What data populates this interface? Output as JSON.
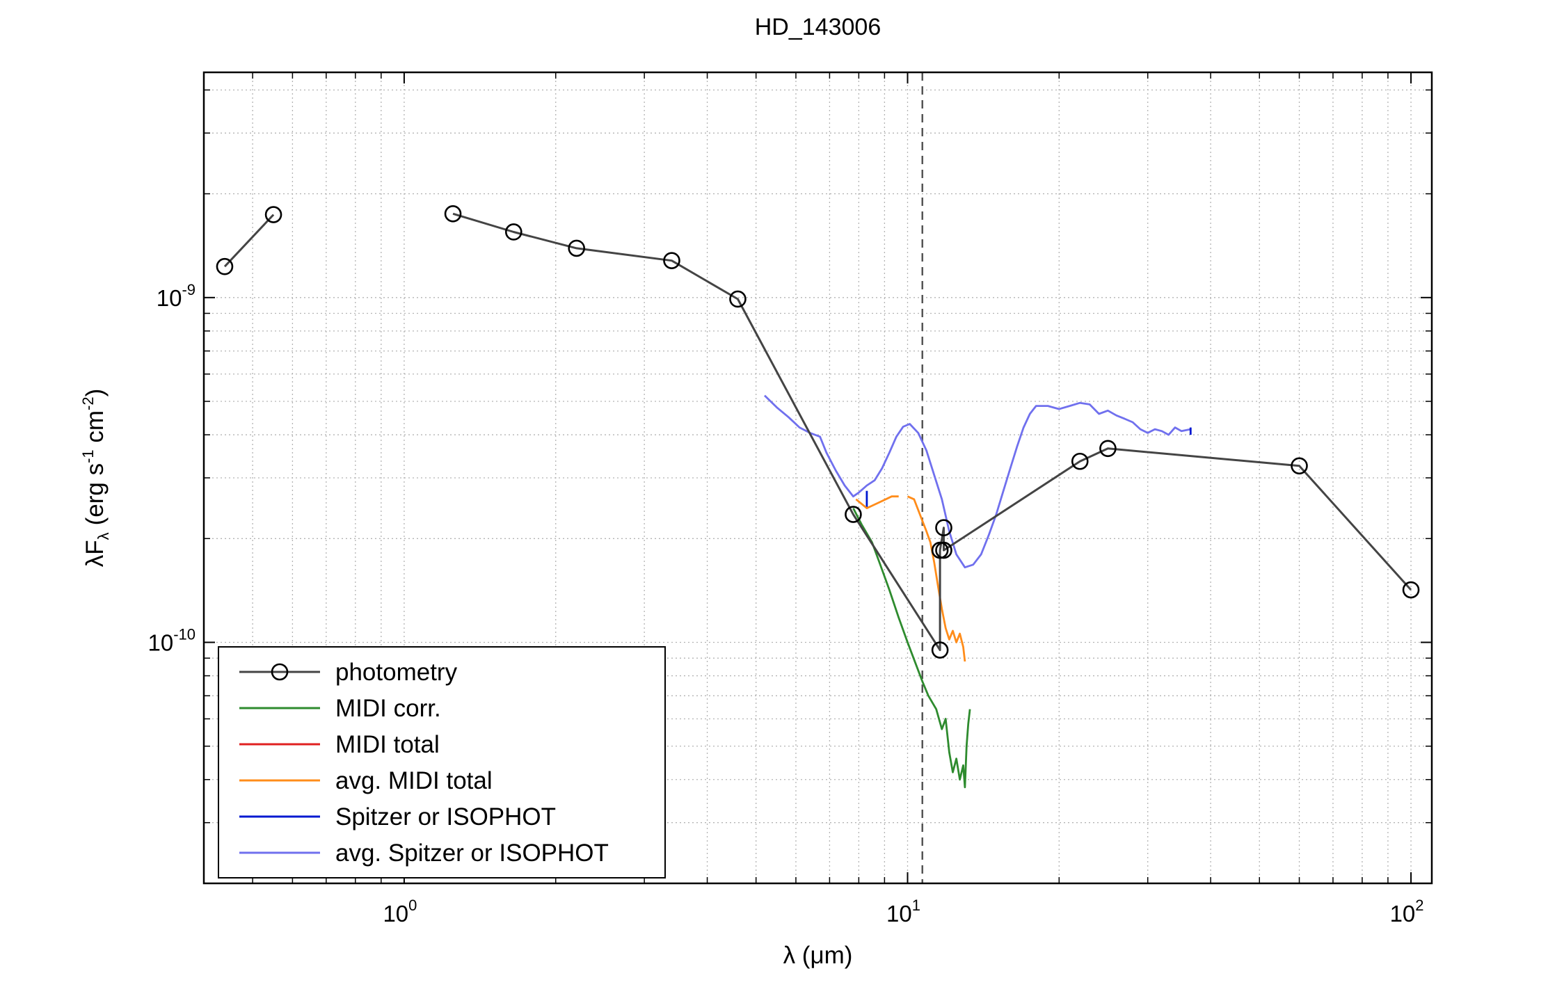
{
  "chart_data": {
    "type": "line",
    "title": "HD_143006",
    "xlabel": {
      "prefix": "λ (",
      "unit": "μm",
      "suffix": ")"
    },
    "ylabel": {
      "text": "λF",
      "sub": "λ",
      "units": "(erg s",
      "exp1": "-1",
      "mid": " cm",
      "exp2": "-2",
      "close": ")"
    },
    "xscale": "log",
    "yscale": "log",
    "xlim": [
      0.4,
      110
    ],
    "ylim": [
      2e-11,
      4.5e-09
    ],
    "grid": true,
    "legend_position": "bottom-left",
    "x_ticks": [
      {
        "value": 1,
        "base": "10",
        "exp": "0"
      },
      {
        "value": 10,
        "base": "10",
        "exp": "1"
      },
      {
        "value": 100,
        "base": "10",
        "exp": "2"
      }
    ],
    "y_ticks": [
      {
        "value": 1e-10,
        "base": "10",
        "exp": "-10"
      },
      {
        "value": 1e-09,
        "base": "10",
        "exp": "-9"
      }
    ],
    "vertical_line": {
      "x": 10.7,
      "style": "dashed",
      "color": "#555555"
    },
    "series": [
      {
        "name": "photometry",
        "color": "#444444",
        "marker": "circle",
        "segments": [
          [
            [
              0.44,
              1.23e-09
            ],
            [
              0.55,
              1.74e-09
            ]
          ],
          [
            [
              1.25,
              1.75e-09
            ],
            [
              1.65,
              1.55e-09
            ],
            [
              2.2,
              1.39e-09
            ],
            [
              3.4,
              1.28e-09
            ],
            [
              4.6,
              9.9e-10
            ],
            [
              7.8,
              2.35e-10
            ],
            [
              11.6,
              9.5e-11
            ],
            [
              11.6,
              1.85e-10
            ],
            [
              11.8,
              2.15e-10
            ],
            [
              11.8,
              1.85e-10
            ],
            [
              22,
              3.35e-10
            ],
            [
              25,
              3.65e-10
            ],
            [
              60,
              3.25e-10
            ],
            [
              100,
              1.42e-10
            ]
          ]
        ]
      },
      {
        "name": "MIDI corr.",
        "color": "#2e8b2e",
        "marker": "none",
        "segments": [
          [
            [
              7.8,
              2.45e-10
            ],
            [
              8.1,
              2.2e-10
            ],
            [
              8.5,
              1.95e-10
            ],
            [
              8.8,
              1.7e-10
            ],
            [
              9.2,
              1.42e-10
            ],
            [
              9.6,
              1.18e-10
            ],
            [
              10.0,
              1e-10
            ],
            [
              10.4,
              8.6e-11
            ],
            [
              10.7,
              7.7e-11
            ],
            [
              11.0,
              7e-11
            ],
            [
              11.4,
              6.4e-11
            ],
            [
              11.7,
              5.6e-11
            ],
            [
              11.9,
              6e-11
            ],
            [
              12.1,
              4.8e-11
            ],
            [
              12.3,
              4.2e-11
            ],
            [
              12.5,
              4.6e-11
            ],
            [
              12.7,
              4e-11
            ],
            [
              12.9,
              4.4e-11
            ],
            [
              13.0,
              3.8e-11
            ],
            [
              13.1,
              5e-11
            ],
            [
              13.2,
              5.8e-11
            ],
            [
              13.3,
              6.4e-11
            ]
          ]
        ]
      },
      {
        "name": "MIDI total",
        "color": "#e02020",
        "marker": "none",
        "segments": []
      },
      {
        "name": "avg. MIDI total",
        "color": "#ff8c1a",
        "marker": "none",
        "segments": [
          [
            [
              7.9,
              2.6e-10
            ],
            [
              8.3,
              2.45e-10
            ],
            [
              8.8,
              2.55e-10
            ],
            [
              9.3,
              2.65e-10
            ],
            [
              9.6,
              2.65e-10
            ]
          ],
          [
            [
              10.0,
              2.65e-10
            ],
            [
              10.3,
              2.6e-10
            ],
            [
              10.5,
              2.42e-10
            ],
            [
              10.7,
              2.25e-10
            ],
            [
              10.9,
              2.1e-10
            ],
            [
              11.1,
              1.95e-10
            ],
            [
              11.3,
              1.7e-10
            ],
            [
              11.5,
              1.45e-10
            ],
            [
              11.7,
              1.25e-10
            ],
            [
              11.9,
              1.1e-10
            ],
            [
              12.1,
              1.02e-10
            ],
            [
              12.3,
              1.08e-10
            ],
            [
              12.5,
              1e-10
            ],
            [
              12.7,
              1.06e-10
            ],
            [
              12.9,
              9.7e-11
            ],
            [
              13.0,
              8.8e-11
            ]
          ]
        ]
      },
      {
        "name": "Spitzer or ISOPHOT",
        "color": "#0018d0",
        "marker": "none",
        "segments": [
          [
            [
              8.3,
              2.75e-10
            ],
            [
              8.3,
              2.45e-10
            ]
          ],
          [
            [
              36.5,
              4.2e-10
            ],
            [
              36.5,
              4e-10
            ]
          ]
        ]
      },
      {
        "name": "avg. Spitzer or ISOPHOT",
        "color": "#7070ee",
        "marker": "none",
        "segments": [
          [
            [
              5.2,
              5.2e-10
            ],
            [
              5.5,
              4.8e-10
            ],
            [
              5.8,
              4.5e-10
            ],
            [
              6.1,
              4.2e-10
            ],
            [
              6.4,
              4.05e-10
            ],
            [
              6.7,
              3.95e-10
            ],
            [
              6.9,
              3.55e-10
            ],
            [
              7.2,
              3.15e-10
            ],
            [
              7.5,
              2.85e-10
            ],
            [
              7.8,
              2.65e-10
            ],
            [
              8.0,
              2.72e-10
            ],
            [
              8.3,
              2.85e-10
            ],
            [
              8.6,
              2.95e-10
            ],
            [
              8.9,
              3.2e-10
            ],
            [
              9.2,
              3.55e-10
            ],
            [
              9.5,
              3.95e-10
            ],
            [
              9.8,
              4.22e-10
            ],
            [
              10.1,
              4.3e-10
            ],
            [
              10.5,
              4.05e-10
            ],
            [
              10.9,
              3.6e-10
            ],
            [
              11.3,
              3.05e-10
            ],
            [
              11.7,
              2.6e-10
            ],
            [
              12.1,
              2.1e-10
            ],
            [
              12.5,
              1.8e-10
            ],
            [
              13.0,
              1.65e-10
            ],
            [
              13.5,
              1.68e-10
            ],
            [
              14.0,
              1.8e-10
            ],
            [
              14.5,
              2.05e-10
            ],
            [
              15.0,
              2.35e-10
            ],
            [
              15.5,
              2.75e-10
            ],
            [
              16.0,
              3.2e-10
            ],
            [
              16.5,
              3.7e-10
            ],
            [
              17.0,
              4.2e-10
            ],
            [
              17.5,
              4.6e-10
            ],
            [
              18.0,
              4.85e-10
            ],
            [
              19.0,
              4.85e-10
            ],
            [
              20.0,
              4.75e-10
            ],
            [
              21.0,
              4.85e-10
            ],
            [
              22.0,
              4.95e-10
            ],
            [
              23.0,
              4.9e-10
            ],
            [
              24.0,
              4.6e-10
            ],
            [
              25.0,
              4.7e-10
            ],
            [
              26.0,
              4.55e-10
            ],
            [
              27.0,
              4.45e-10
            ],
            [
              28.0,
              4.35e-10
            ],
            [
              29.0,
              4.15e-10
            ],
            [
              30.0,
              4.05e-10
            ],
            [
              31.0,
              4.15e-10
            ],
            [
              32.0,
              4.1e-10
            ],
            [
              33.0,
              4e-10
            ],
            [
              34.0,
              4.2e-10
            ],
            [
              35.0,
              4.1e-10
            ],
            [
              36.5,
              4.15e-10
            ]
          ]
        ]
      }
    ]
  }
}
